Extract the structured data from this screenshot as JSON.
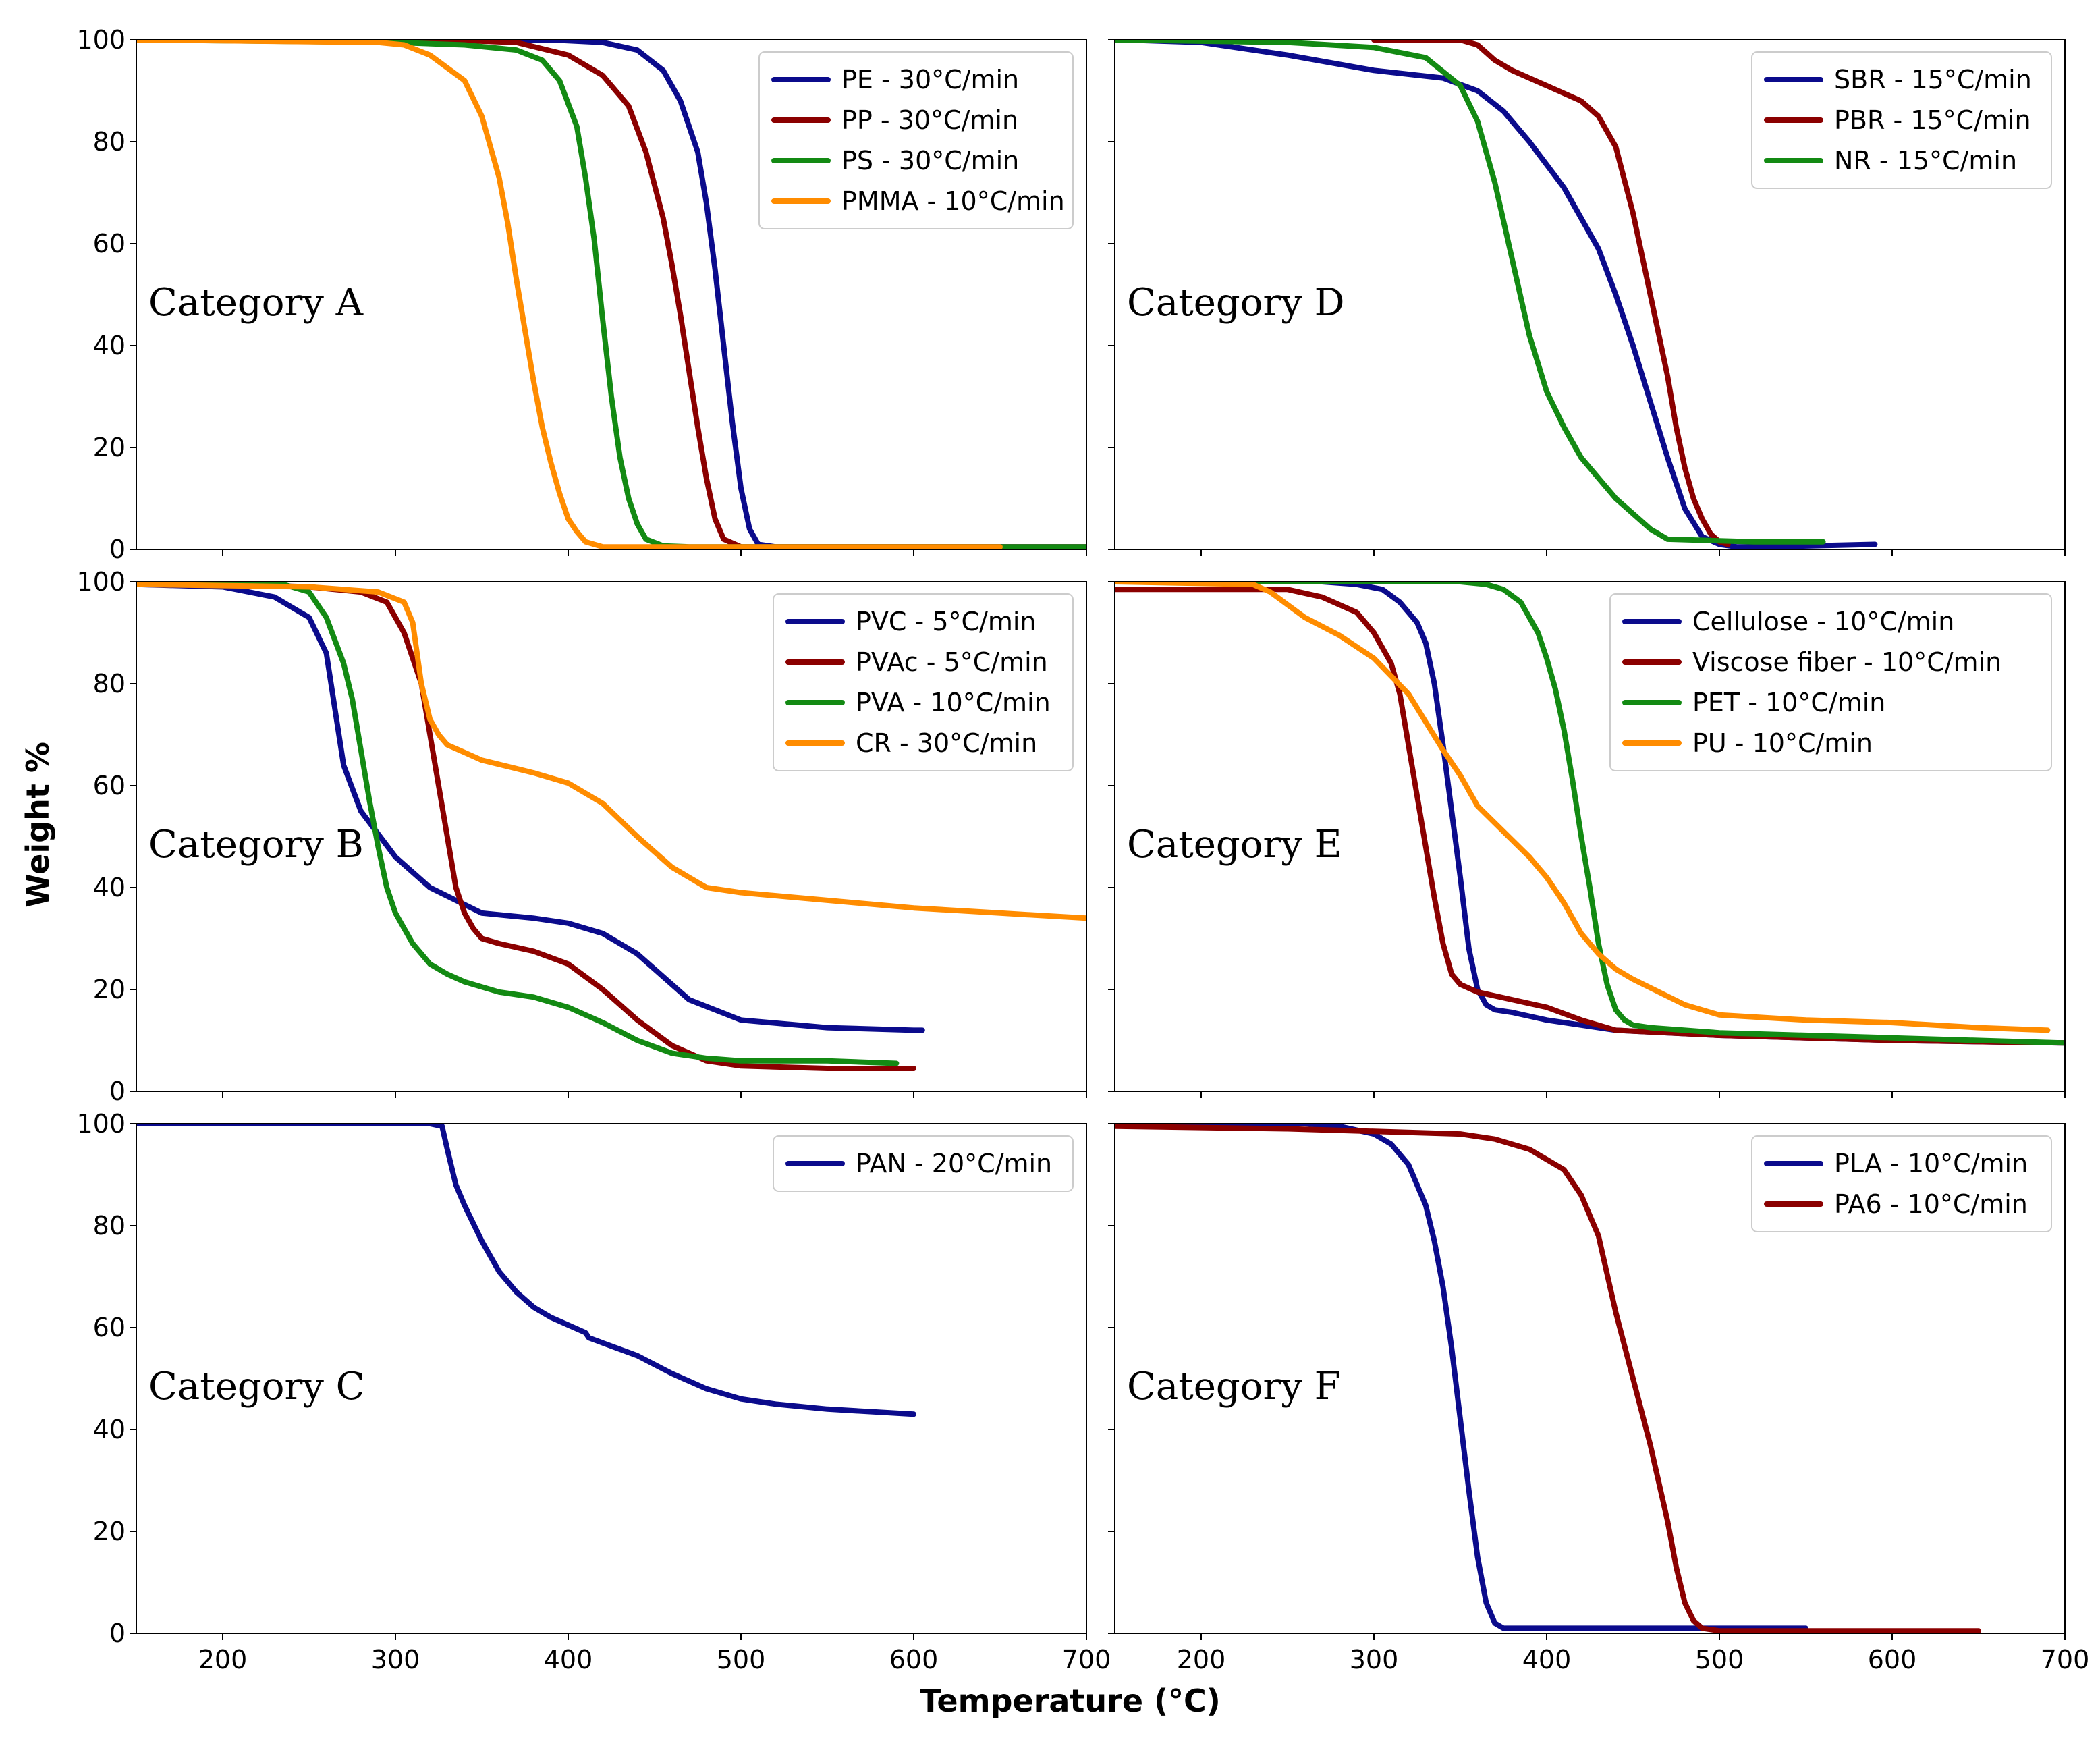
{
  "colors": {
    "navy": "#0b0b8c",
    "maroon": "#8b0000",
    "green": "#138a13",
    "orange": "#ff8c00"
  },
  "figure": {
    "xlabel": "Temperature (°C)",
    "ylabel": "Weight %"
  },
  "chart_data": [
    {
      "type": "line",
      "title": "Category A",
      "xlim": [
        150,
        700
      ],
      "ylim": [
        0,
        100
      ],
      "xticks": [
        "200",
        "300",
        "400",
        "500",
        "600",
        "700"
      ],
      "yticks": [
        "0",
        "20",
        "40",
        "60",
        "80",
        "100"
      ],
      "show_xticklabels": false,
      "series": [
        {
          "name": "PE - 30°C/min",
          "color": "#0b0b8c",
          "x": [
            150,
            300,
            390,
            420,
            440,
            455,
            465,
            475,
            480,
            485,
            490,
            495,
            500,
            505,
            510,
            520,
            600,
            700
          ],
          "y": [
            100,
            100,
            100,
            99.5,
            98,
            94,
            88,
            78,
            68,
            55,
            40,
            25,
            12,
            4,
            1,
            0.5,
            0.5,
            0.5
          ]
        },
        {
          "name": "PP - 30°C/min",
          "color": "#8b0000",
          "x": [
            150,
            330,
            370,
            400,
            420,
            435,
            445,
            455,
            460,
            465,
            470,
            475,
            480,
            485,
            490,
            500,
            600,
            700
          ],
          "y": [
            100,
            100,
            99.5,
            97,
            93,
            87,
            78,
            65,
            56,
            46,
            35,
            24,
            14,
            6,
            2,
            0.5,
            0.5,
            0.5
          ]
        },
        {
          "name": "PS - 30°C/min",
          "color": "#138a13",
          "x": [
            150,
            300,
            340,
            370,
            385,
            395,
            405,
            410,
            415,
            420,
            425,
            430,
            435,
            440,
            445,
            455,
            470,
            600,
            700
          ],
          "y": [
            100,
            99.5,
            99,
            98,
            96,
            92,
            83,
            73,
            61,
            45,
            30,
            18,
            10,
            5,
            2,
            0.7,
            0.5,
            0.5,
            0.5
          ]
        },
        {
          "name": "PMMA - 10°C/min",
          "color": "#ff8c00",
          "x": [
            150,
            290,
            305,
            320,
            340,
            350,
            360,
            365,
            370,
            375,
            380,
            385,
            390,
            395,
            400,
            405,
            410,
            420,
            450,
            600,
            650
          ],
          "y": [
            100,
            99.5,
            99,
            97,
            92,
            85,
            73,
            64,
            53,
            43,
            33,
            24,
            17,
            11,
            6,
            3.5,
            1.5,
            0.5,
            0.5,
            0.5,
            0.5
          ]
        }
      ]
    },
    {
      "type": "line",
      "title": "Category D",
      "xlim": [
        150,
        700
      ],
      "ylim": [
        0,
        100
      ],
      "xticks": [
        "200",
        "300",
        "400",
        "500",
        "600",
        "700"
      ],
      "yticks": [
        "0",
        "20",
        "40",
        "60",
        "80",
        "100"
      ],
      "show_xticklabels": false,
      "series": [
        {
          "name": "SBR - 15°C/min",
          "color": "#0b0b8c",
          "x": [
            155,
            200,
            250,
            300,
            340,
            360,
            375,
            390,
            410,
            430,
            440,
            450,
            460,
            470,
            480,
            490,
            500,
            510,
            530,
            590
          ],
          "y": [
            100,
            99.5,
            97,
            94,
            92.5,
            90,
            86,
            80,
            71,
            59,
            50,
            40,
            29,
            18,
            8,
            2.5,
            1,
            0.5,
            0.5,
            1
          ]
        },
        {
          "name": "PBR - 15°C/min",
          "color": "#8b0000",
          "x": [
            300,
            350,
            360,
            370,
            380,
            400,
            420,
            430,
            440,
            450,
            460,
            470,
            475,
            480,
            485,
            490,
            495,
            500,
            505
          ],
          "y": [
            100,
            100,
            99,
            96,
            94,
            91,
            88,
            85,
            79,
            66,
            50,
            34,
            24,
            16,
            10,
            6,
            3,
            1.5,
            1
          ]
        },
        {
          "name": "NR - 15°C/min",
          "color": "#138a13",
          "x": [
            150,
            250,
            300,
            330,
            350,
            360,
            370,
            380,
            390,
            400,
            410,
            420,
            440,
            460,
            470,
            520,
            560
          ],
          "y": [
            100,
            99.5,
            98.5,
            96.5,
            91,
            84,
            72,
            57,
            42,
            31,
            24,
            18,
            10,
            4,
            2,
            1.5,
            1.5
          ]
        }
      ]
    },
    {
      "type": "line",
      "title": "Category B",
      "xlim": [
        150,
        700
      ],
      "ylim": [
        0,
        100
      ],
      "xticks": [
        "200",
        "300",
        "400",
        "500",
        "600",
        "700"
      ],
      "yticks": [
        "0",
        "20",
        "40",
        "60",
        "80",
        "100"
      ],
      "show_xticklabels": false,
      "series": [
        {
          "name": "PVC - 5°C/min",
          "color": "#0b0b8c",
          "x": [
            150,
            200,
            230,
            250,
            260,
            265,
            270,
            280,
            300,
            320,
            350,
            380,
            400,
            420,
            440,
            470,
            500,
            550,
            600,
            605
          ],
          "y": [
            99.5,
            99,
            97,
            93,
            86,
            75,
            64,
            55,
            46,
            40,
            35,
            34,
            33,
            31,
            27,
            18,
            14,
            12.5,
            12,
            12
          ]
        },
        {
          "name": "PVAc - 5°C/min",
          "color": "#8b0000",
          "x": [
            150,
            250,
            280,
            295,
            305,
            315,
            320,
            325,
            330,
            335,
            340,
            345,
            350,
            360,
            380,
            400,
            420,
            440,
            460,
            480,
            500,
            550,
            600
          ],
          "y": [
            100,
            99,
            98,
            96,
            90,
            80,
            70,
            60,
            50,
            40,
            35,
            32,
            30,
            29,
            27.5,
            25,
            20,
            14,
            9,
            6,
            5,
            4.5,
            4.5
          ]
        },
        {
          "name": "PVA - 10°C/min",
          "color": "#138a13",
          "x": [
            150,
            230,
            250,
            260,
            270,
            275,
            280,
            285,
            290,
            295,
            300,
            310,
            320,
            330,
            340,
            360,
            380,
            400,
            420,
            440,
            460,
            480,
            500,
            550,
            590
          ],
          "y": [
            100,
            100,
            98,
            93,
            84,
            77,
            67,
            57,
            48,
            40,
            35,
            29,
            25,
            23,
            21.5,
            19.5,
            18.5,
            16.5,
            13.5,
            10,
            7.5,
            6.5,
            6,
            6,
            5.5
          ]
        },
        {
          "name": "CR - 30°C/min",
          "color": "#ff8c00",
          "x": [
            150,
            250,
            290,
            305,
            310,
            315,
            320,
            325,
            330,
            340,
            350,
            380,
            400,
            420,
            440,
            460,
            480,
            500,
            550,
            600,
            650,
            700
          ],
          "y": [
            99.5,
            99,
            98,
            96,
            92,
            80,
            73,
            70,
            68,
            66.5,
            65,
            62.5,
            60.5,
            56.5,
            50,
            44,
            40,
            39,
            37.5,
            36,
            35,
            34
          ]
        }
      ]
    },
    {
      "type": "line",
      "title": "Category E",
      "xlim": [
        150,
        700
      ],
      "ylim": [
        0,
        100
      ],
      "xticks": [
        "200",
        "300",
        "400",
        "500",
        "600",
        "700"
      ],
      "yticks": [
        "0",
        "20",
        "40",
        "60",
        "80",
        "100"
      ],
      "show_xticklabels": false,
      "series": [
        {
          "name": "Cellulose - 10°C/min",
          "color": "#0b0b8c",
          "x": [
            150,
            270,
            290,
            305,
            315,
            325,
            330,
            335,
            340,
            345,
            350,
            355,
            360,
            365,
            370,
            380,
            400,
            420,
            440,
            500,
            600,
            700
          ],
          "y": [
            100,
            100,
            99.5,
            98.5,
            96,
            92,
            88,
            80,
            68,
            55,
            42,
            28,
            20,
            17,
            16,
            15.5,
            14,
            13,
            12,
            11,
            10,
            9.5
          ]
        },
        {
          "name": "Viscose fiber - 10°C/min",
          "color": "#8b0000",
          "x": [
            150,
            250,
            270,
            290,
            300,
            310,
            315,
            320,
            325,
            330,
            335,
            340,
            345,
            350,
            360,
            380,
            400,
            420,
            440,
            500,
            600,
            700
          ],
          "y": [
            98.5,
            98.5,
            97,
            94,
            90,
            84,
            78,
            68,
            58,
            48,
            38,
            29,
            23,
            21,
            19.5,
            18,
            16.5,
            14,
            12,
            11,
            10,
            9.5
          ]
        },
        {
          "name": "PET - 10°C/min",
          "color": "#138a13",
          "x": [
            150,
            350,
            365,
            375,
            385,
            395,
            400,
            405,
            410,
            415,
            420,
            425,
            430,
            435,
            440,
            445,
            450,
            460,
            480,
            500,
            600,
            700
          ],
          "y": [
            100,
            100,
            99.5,
            98.5,
            96,
            90,
            85,
            79,
            71,
            61,
            50,
            40,
            29,
            21,
            16,
            14,
            13,
            12.5,
            12,
            11.5,
            10.5,
            9.5
          ]
        },
        {
          "name": "PU - 10°C/min",
          "color": "#ff8c00",
          "x": [
            150,
            230,
            240,
            260,
            280,
            300,
            320,
            340,
            350,
            360,
            375,
            390,
            400,
            410,
            420,
            430,
            440,
            450,
            480,
            500,
            550,
            600,
            650,
            690
          ],
          "y": [
            100,
            99.5,
            98,
            93,
            89.5,
            85,
            78,
            67,
            62,
            56,
            51,
            46,
            42,
            37,
            31,
            27,
            24,
            22,
            17,
            15,
            14,
            13.5,
            12.5,
            12
          ]
        }
      ]
    },
    {
      "type": "line",
      "title": "Category C",
      "xlim": [
        150,
        700
      ],
      "ylim": [
        0,
        100
      ],
      "xticks": [
        "200",
        "300",
        "400",
        "500",
        "600",
        "700"
      ],
      "yticks": [
        "0",
        "20",
        "40",
        "60",
        "80",
        "100"
      ],
      "show_xticklabels": true,
      "series": [
        {
          "name": "PAN - 20°C/min",
          "color": "#0b0b8c",
          "x": [
            150,
            320,
            327,
            330,
            335,
            340,
            350,
            360,
            370,
            380,
            390,
            400,
            410,
            412,
            420,
            440,
            460,
            480,
            500,
            520,
            550,
            600
          ],
          "y": [
            100,
            100,
            99.5,
            95,
            88,
            84,
            77,
            71,
            67,
            64,
            62,
            60.5,
            59,
            58,
            57,
            54.5,
            51,
            48,
            46,
            45,
            44,
            43
          ]
        }
      ]
    },
    {
      "type": "line",
      "title": "Category F",
      "xlim": [
        150,
        700
      ],
      "ylim": [
        0,
        100
      ],
      "xticks": [
        "200",
        "300",
        "400",
        "500",
        "600",
        "700"
      ],
      "yticks": [
        "0",
        "20",
        "40",
        "60",
        "80",
        "100"
      ],
      "show_xticklabels": true,
      "series": [
        {
          "name": "PLA - 10°C/min",
          "color": "#0b0b8c",
          "x": [
            150,
            260,
            280,
            300,
            310,
            320,
            330,
            335,
            340,
            345,
            350,
            355,
            360,
            365,
            370,
            375,
            380,
            400,
            550
          ],
          "y": [
            100,
            100,
            99.5,
            98,
            96,
            92,
            84,
            77,
            68,
            56,
            42,
            28,
            15,
            6,
            2,
            1,
            1,
            1,
            1
          ]
        },
        {
          "name": "PA6 - 10°C/min",
          "color": "#8b0000",
          "x": [
            150,
            250,
            300,
            350,
            370,
            390,
            410,
            420,
            430,
            440,
            450,
            460,
            470,
            475,
            480,
            485,
            490,
            500,
            550,
            650
          ],
          "y": [
            99.5,
            99,
            98.5,
            98,
            97,
            95,
            91,
            86,
            78,
            63,
            50,
            37,
            22,
            13,
            6,
            2.5,
            1,
            0.5,
            0.5,
            0.5
          ]
        }
      ]
    }
  ]
}
